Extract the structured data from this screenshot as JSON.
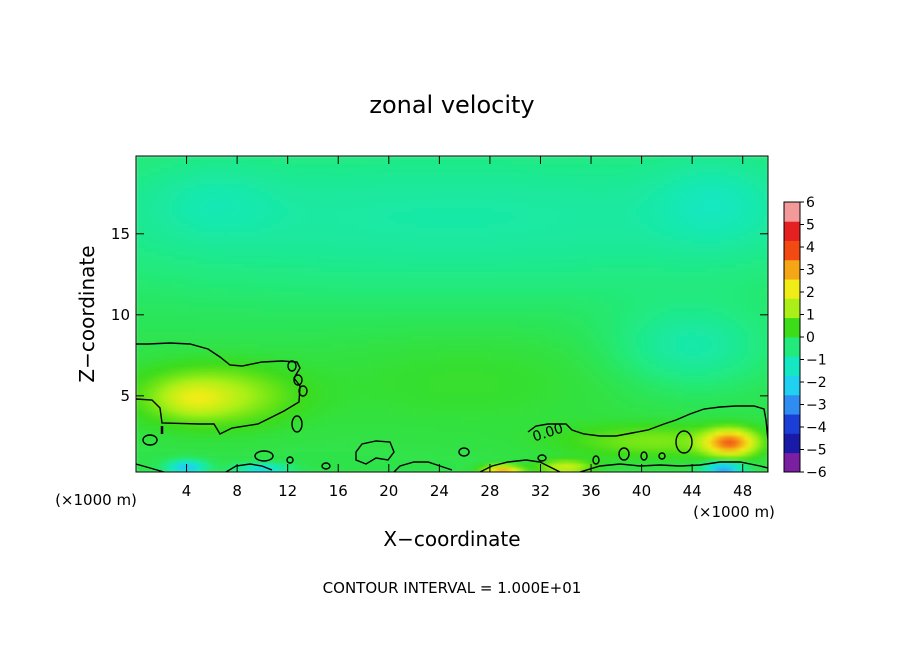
{
  "chart_data": {
    "type": "heatmap",
    "title": "zonal velocity",
    "xlabel": "X−coordinate",
    "ylabel": "Z−coordinate",
    "x_unit_left": "(×1000 m)",
    "x_unit_right": "(×1000 m)",
    "footer": "CONTOUR INTERVAL = 1.000E+01",
    "contour_label": "0.00",
    "xlim": [
      0,
      50
    ],
    "ylim": [
      0.3,
      19.8
    ],
    "x_ticks": [
      {
        "value": 4,
        "label": "4"
      },
      {
        "value": 8,
        "label": "8"
      },
      {
        "value": 12,
        "label": "12"
      },
      {
        "value": 16,
        "label": "16"
      },
      {
        "value": 20,
        "label": "20"
      },
      {
        "value": 24,
        "label": "24"
      },
      {
        "value": 28,
        "label": "28"
      },
      {
        "value": 32,
        "label": "32"
      },
      {
        "value": 36,
        "label": "36"
      },
      {
        "value": 40,
        "label": "40"
      },
      {
        "value": 44,
        "label": "44"
      },
      {
        "value": 48,
        "label": "48"
      }
    ],
    "y_ticks": [
      {
        "value": 5,
        "label": "5"
      },
      {
        "value": 10,
        "label": "10"
      },
      {
        "value": 15,
        "label": "15"
      }
    ],
    "colorbar": {
      "min": -6,
      "max": 6,
      "labels": [
        {
          "value": 6,
          "label": "6"
        },
        {
          "value": 5,
          "label": "5"
        },
        {
          "value": 4,
          "label": "4"
        },
        {
          "value": 3,
          "label": "3"
        },
        {
          "value": 2,
          "label": "2"
        },
        {
          "value": 1,
          "label": "1"
        },
        {
          "value": 0,
          "label": "0"
        },
        {
          "value": -1,
          "label": "−1"
        },
        {
          "value": -2,
          "label": "−2"
        },
        {
          "value": -3,
          "label": "−3"
        },
        {
          "value": -4,
          "label": "−4"
        },
        {
          "value": -5,
          "label": "−5"
        },
        {
          "value": -6,
          "label": "−6"
        }
      ],
      "colors": [
        "#7a1fa2",
        "#1a1aa8",
        "#1b3fd6",
        "#2f8cf2",
        "#1fd0f0",
        "#13e8c3",
        "#22ea7b",
        "#3cdc1a",
        "#aaf018",
        "#f0ec18",
        "#f5a616",
        "#f24a12",
        "#e42020",
        "#f29a9a"
      ]
    },
    "features": [
      {
        "name": "upper-ambient",
        "x": 25,
        "z": 16,
        "sx": 40,
        "sz": 5,
        "value": -1.0
      },
      {
        "name": "upper-left-tongue",
        "x": 6,
        "z": 17,
        "sx": 5,
        "sz": 2.5,
        "value": -0.4
      },
      {
        "name": "upper-right-tongue",
        "x": 46,
        "z": 17,
        "sx": 5,
        "sz": 3,
        "value": -0.6
      },
      {
        "name": "mid-right-cyan",
        "x": 44,
        "z": 8,
        "sx": 6,
        "sz": 2.5,
        "value": -1.0
      },
      {
        "name": "center-green",
        "x": 26,
        "z": 6,
        "sx": 12,
        "sz": 3,
        "value": 0.3
      },
      {
        "name": "left-bulge",
        "x": 6,
        "z": 5,
        "sx": 6,
        "sz": 1.8,
        "value": 1.6
      },
      {
        "name": "left-bulge-core",
        "x": 4.5,
        "z": 4.8,
        "sx": 2.5,
        "sz": 1.0,
        "value": 0.8
      },
      {
        "name": "right-low-positive",
        "x": 41,
        "z": 2.2,
        "sx": 7,
        "sz": 1.0,
        "value": 1.0
      },
      {
        "name": "right-orange-core",
        "x": 47,
        "z": 2.1,
        "sx": 2.0,
        "sz": 0.8,
        "value": 3.5
      },
      {
        "name": "bottom-red-28",
        "x": 29,
        "z": 0.4,
        "sx": 1.5,
        "sz": 0.3,
        "value": 3.0
      },
      {
        "name": "bottom-blue-4",
        "x": 4,
        "z": 0.6,
        "sx": 1.5,
        "sz": 0.4,
        "value": -2.5
      },
      {
        "name": "bottom-blue-10",
        "x": 10,
        "z": 0.5,
        "sx": 2.0,
        "sz": 0.3,
        "value": -2.0
      },
      {
        "name": "bottom-blue-46",
        "x": 46.5,
        "z": 0.5,
        "sx": 1.5,
        "sz": 0.4,
        "value": -3.0
      },
      {
        "name": "bottom-yellow-34",
        "x": 34,
        "z": 0.6,
        "sx": 2.0,
        "sz": 0.4,
        "value": 1.8
      }
    ]
  }
}
